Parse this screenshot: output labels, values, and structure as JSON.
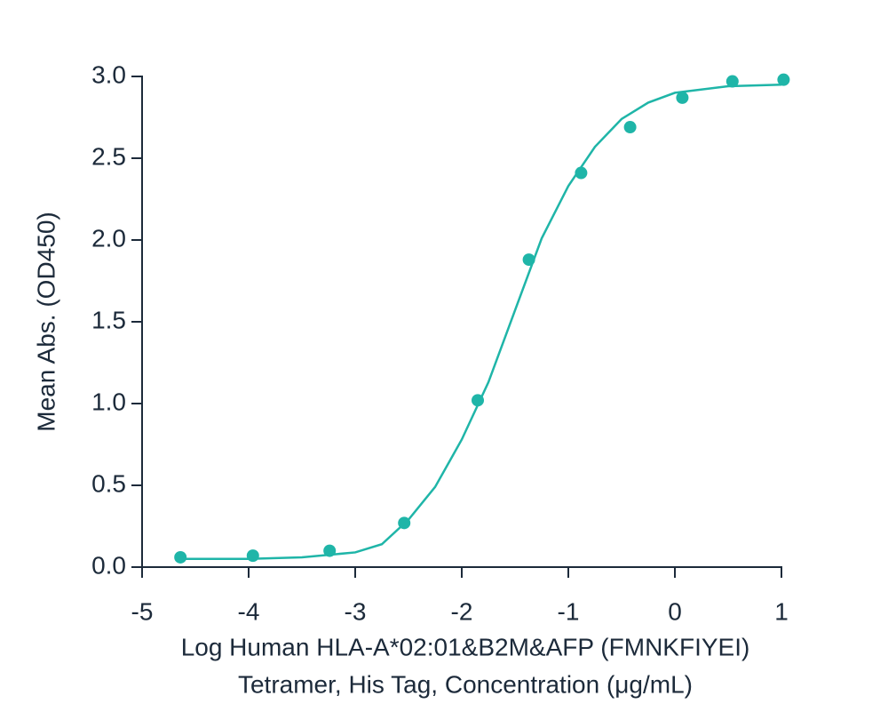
{
  "chart_data": {
    "type": "scatter",
    "y_label": "Mean Abs. (OD450)",
    "x_label": [
      "Log Human HLA-A*02:01&B2M&AFP (FMNKFIYEI)",
      "Tetramer, His Tag, Concentration (μg/mL)"
    ],
    "xlim": [
      -5,
      1
    ],
    "xticks": [
      -5,
      -4,
      -3,
      -2,
      -1,
      0,
      1
    ],
    "ylim": [
      0,
      3
    ],
    "yticks": [
      {
        "value": 0,
        "label": "0.0"
      },
      0.5,
      {
        "value": 1,
        "label": "1.0"
      },
      1.5,
      {
        "value": 2,
        "label": "2.0"
      },
      2.5,
      {
        "value": 3,
        "label": "3.0"
      }
    ],
    "series": [
      {
        "color": "#1fb5a8",
        "mode": "markers",
        "x": [
          -4.64,
          -3.96,
          -3.24,
          -2.54,
          -1.85,
          -1.37,
          -0.88,
          -0.42,
          0.07,
          0.54,
          1.02
        ],
        "values": [
          0.06,
          0.07,
          0.1,
          0.27,
          1.02,
          1.88,
          2.41,
          2.69,
          2.87,
          2.97,
          2.98
        ]
      },
      {
        "color": "#1fb5a8",
        "mode": "line",
        "x": [
          -4.65,
          -4,
          -3.5,
          -3,
          -2.75,
          -2.5,
          -2.25,
          -2,
          -1.75,
          -1.5,
          -1.25,
          -1,
          -0.75,
          -0.5,
          -0.25,
          0,
          0.5,
          1
        ],
        "values": [
          0.05,
          0.05,
          0.06,
          0.09,
          0.14,
          0.29,
          0.49,
          0.78,
          1.13,
          1.57,
          2.01,
          2.33,
          2.57,
          2.74,
          2.84,
          2.9,
          2.94,
          2.95
        ]
      }
    ]
  }
}
